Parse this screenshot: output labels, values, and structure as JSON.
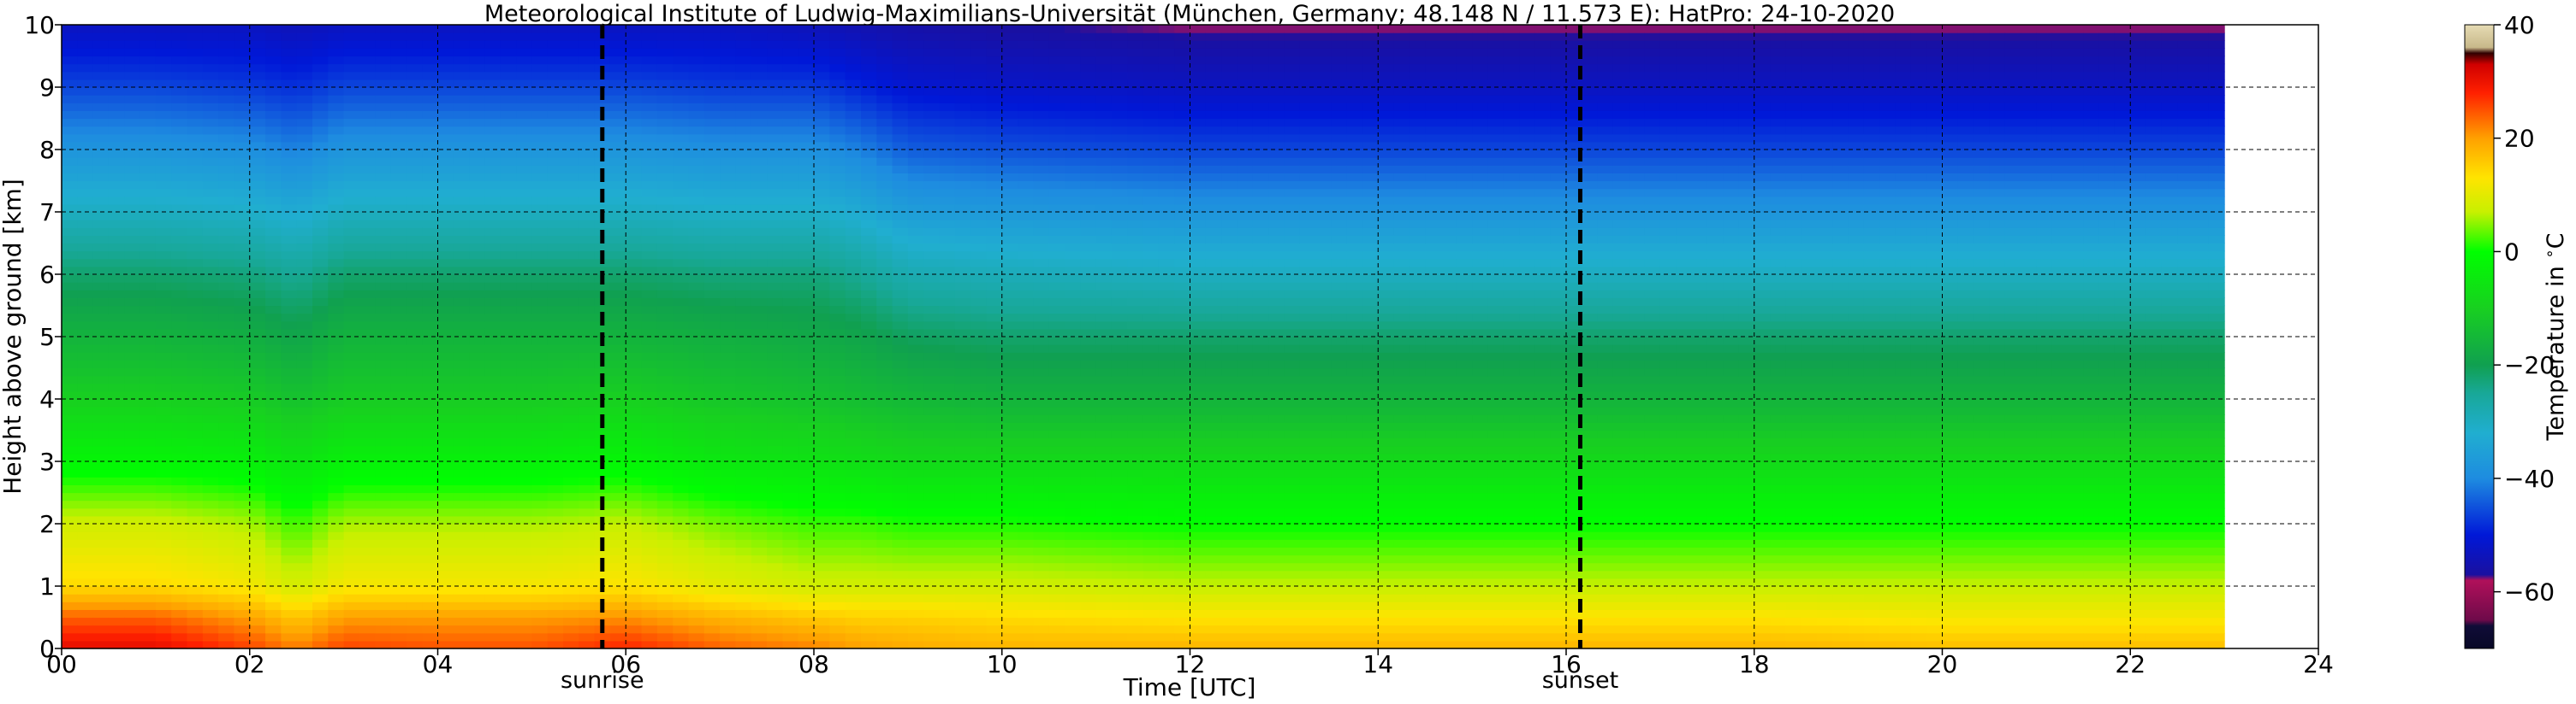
{
  "chart_data": {
    "type": "heatmap",
    "title": "Meteorological Institute of Ludwig-Maximilians-Universität (München, Germany; 48.148 N / 11.573 E):    HatPro: 24-10-2020",
    "xlabel": "Time [UTC]",
    "ylabel": "Height above ground [km]",
    "xlim": [
      0,
      24
    ],
    "ylim": [
      0,
      10
    ],
    "x_ticks": [
      "00",
      "02",
      "04",
      "06",
      "08",
      "10",
      "12",
      "14",
      "16",
      "18",
      "20",
      "22",
      "24"
    ],
    "y_ticks": [
      "0",
      "1",
      "2",
      "3",
      "4",
      "5",
      "6",
      "7",
      "8",
      "9",
      "10"
    ],
    "grid": true,
    "data_end_hour": 23,
    "markers": [
      {
        "label": "sunrise",
        "x": 5.75
      },
      {
        "label": "sunset",
        "x": 16.15
      }
    ],
    "colorbar": {
      "label": "Temperature in $^\\circ$C",
      "range": [
        -70,
        40
      ],
      "ticks": [
        "40",
        "20",
        "0",
        "−20",
        "−40",
        "−60"
      ],
      "tick_values": [
        40,
        20,
        0,
        -20,
        -40,
        -60
      ],
      "stops": [
        {
          "value": -70,
          "color": "#080826"
        },
        {
          "value": -66,
          "color": "#100c38"
        },
        {
          "value": -65,
          "color": "#6e0a4a"
        },
        {
          "value": -58,
          "color": "#b0105a"
        },
        {
          "value": -57,
          "color": "#1a10a0"
        },
        {
          "value": -50,
          "color": "#0018d8"
        },
        {
          "value": -40,
          "color": "#1e8ce0"
        },
        {
          "value": -32,
          "color": "#20aed0"
        },
        {
          "value": -25,
          "color": "#18a898"
        },
        {
          "value": -20,
          "color": "#10a050"
        },
        {
          "value": -10,
          "color": "#18d020"
        },
        {
          "value": 0,
          "color": "#00ff00"
        },
        {
          "value": 7,
          "color": "#c8f000"
        },
        {
          "value": 13,
          "color": "#ffe400"
        },
        {
          "value": 20,
          "color": "#ffa000"
        },
        {
          "value": 28,
          "color": "#ff2000"
        },
        {
          "value": 33,
          "color": "#d00000"
        },
        {
          "value": 35,
          "color": "#300000"
        },
        {
          "value": 36,
          "color": "#c8b88a"
        },
        {
          "value": 40,
          "color": "#e6dcb4"
        }
      ]
    },
    "temperature_profile": {
      "heights_km": [
        0,
        0.5,
        1,
        2,
        3,
        4,
        5,
        6,
        7,
        8,
        9,
        10
      ],
      "times_utc": [
        0,
        1,
        2,
        2.5,
        3,
        4,
        5,
        6,
        7,
        8,
        8.5,
        9,
        10,
        12,
        14,
        16,
        18,
        20,
        22,
        23
      ],
      "values_c": [
        [
          31,
          24,
          14,
          8,
          -2,
          -10,
          -16,
          -22,
          -30,
          -38,
          -46,
          -53
        ],
        [
          31,
          24,
          14,
          8,
          -2,
          -10,
          -16,
          -22,
          -30,
          -38,
          -46,
          -53
        ],
        [
          26,
          20,
          12,
          6,
          -3,
          -11,
          -17,
          -23,
          -31,
          -39,
          -47,
          -53
        ],
        [
          22,
          16,
          8,
          2,
          -6,
          -13,
          -19,
          -25,
          -33,
          -41,
          -48,
          -54
        ],
        [
          26,
          20,
          12,
          6,
          -3,
          -11,
          -16,
          -22,
          -30,
          -38,
          -46,
          -53
        ],
        [
          25,
          20,
          12,
          6,
          -3,
          -11,
          -16,
          -22,
          -30,
          -38,
          -46,
          -53
        ],
        [
          25,
          20,
          12,
          6,
          -3,
          -11,
          -16,
          -22,
          -30,
          -38,
          -46,
          -53
        ],
        [
          28,
          21,
          13,
          7,
          -2,
          -10,
          -16,
          -22,
          -30,
          -38,
          -46,
          -53
        ],
        [
          24,
          18,
          10,
          4,
          -5,
          -12,
          -17,
          -23,
          -31,
          -39,
          -47,
          -53
        ],
        [
          22,
          16,
          8,
          2,
          -6,
          -13,
          -18,
          -23,
          -31,
          -39,
          -47,
          -54
        ],
        [
          20,
          15,
          8,
          2,
          -7,
          -14,
          -19,
          -25,
          -33,
          -41,
          -49,
          -55
        ],
        [
          19,
          15,
          8,
          1,
          -8,
          -15,
          -21,
          -28,
          -36,
          -44,
          -51,
          -56
        ],
        [
          18,
          14,
          8,
          1,
          -8,
          -16,
          -22,
          -29,
          -37,
          -45,
          -52,
          -57
        ],
        [
          18,
          13,
          7,
          0,
          -8,
          -16,
          -22,
          -30,
          -38,
          -46,
          -53,
          -58
        ],
        [
          18,
          13,
          7,
          0,
          -8,
          -16,
          -22,
          -30,
          -38,
          -46,
          -53,
          -58
        ],
        [
          18,
          13,
          7,
          0,
          -8,
          -16,
          -22,
          -30,
          -38,
          -46,
          -53,
          -58
        ],
        [
          18,
          13,
          7,
          0,
          -8,
          -16,
          -22,
          -30,
          -38,
          -46,
          -53,
          -58
        ],
        [
          17,
          12,
          7,
          0,
          -8,
          -16,
          -22,
          -30,
          -38,
          -46,
          -53,
          -58
        ],
        [
          17,
          12,
          7,
          0,
          -8,
          -16,
          -22,
          -30,
          -38,
          -46,
          -53,
          -58
        ],
        [
          17,
          12,
          7,
          0,
          -8,
          -16,
          -22,
          -30,
          -38,
          -46,
          -53,
          -58
        ]
      ]
    }
  }
}
